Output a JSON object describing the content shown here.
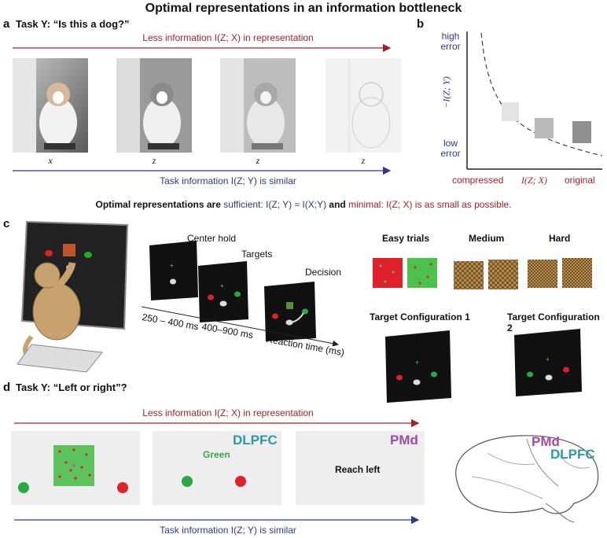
{
  "title": "Optimal representations in an information bottleneck",
  "panel_a": {
    "label": "a",
    "task": "Task Y: “Is this a dog?”",
    "top_arrow": "Less information I(Z; X) in representation",
    "image_labels": [
      "x",
      "z",
      "z",
      "z"
    ],
    "bottom_arrow": "Task information I(Z; Y) is similar"
  },
  "panel_b": {
    "label": "b",
    "y_high": "high\nerror",
    "y_low": "low\nerror",
    "y_axis": "−I(Z; Y)",
    "x_left": "compressed",
    "x_mid": "I(Z; X)",
    "x_right": "original"
  },
  "optimal": {
    "prefix": "Optimal representations are",
    "sufficient": "sufficient: I(Z; Y) ≈ I(X;Y)",
    "and": "and",
    "minimal": "minimal: I(Z; X) is as small as possible."
  },
  "panel_c": {
    "label": "c",
    "center_hold": "Center hold",
    "targets": "Targets",
    "decision": "Decision",
    "t1": "250 – 400 ms",
    "t2": "400–900 ms",
    "t3": "Reaction time (ms)",
    "easy": "Easy trials",
    "medium": "Medium",
    "hard": "Hard",
    "config1": "Target Configuration 1",
    "config2": "Target Configuration 2"
  },
  "panel_d": {
    "label": "d",
    "task": "Task Y: “Left or right”?",
    "top_arrow": "Less information I(Z; X) in representation",
    "dlpfc": "DLPFC",
    "green": "Green",
    "pmd": "PMd",
    "reach": "Reach left",
    "brain_pmd": "PMd",
    "brain_dlpfc": "DLPFC",
    "bottom_arrow": "Task information I(Z; Y) is similar"
  },
  "colors": {
    "red": "#a3212a",
    "blue": "#2b3a8c",
    "dlpfc": "#2a9aa8",
    "pmd": "#a64aa6",
    "target_red": "#e0202a",
    "target_green": "#2aa845"
  }
}
